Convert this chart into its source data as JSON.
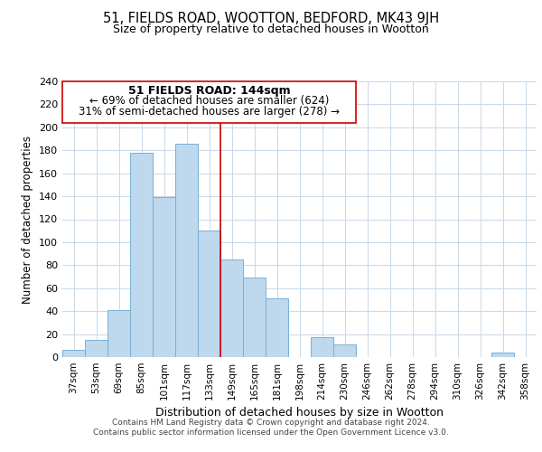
{
  "title": "51, FIELDS ROAD, WOOTTON, BEDFORD, MK43 9JH",
  "subtitle": "Size of property relative to detached houses in Wootton",
  "xlabel": "Distribution of detached houses by size in Wootton",
  "ylabel": "Number of detached properties",
  "bar_labels": [
    "37sqm",
    "53sqm",
    "69sqm",
    "85sqm",
    "101sqm",
    "117sqm",
    "133sqm",
    "149sqm",
    "165sqm",
    "181sqm",
    "198sqm",
    "214sqm",
    "230sqm",
    "246sqm",
    "262sqm",
    "278sqm",
    "294sqm",
    "310sqm",
    "326sqm",
    "342sqm",
    "358sqm"
  ],
  "bar_values": [
    6,
    15,
    41,
    178,
    139,
    186,
    110,
    85,
    69,
    51,
    0,
    17,
    11,
    0,
    0,
    0,
    0,
    0,
    0,
    4,
    0
  ],
  "bar_color": "#bed8ee",
  "bar_edge_color": "#7ab0d4",
  "ylim": [
    0,
    240
  ],
  "yticks": [
    0,
    20,
    40,
    60,
    80,
    100,
    120,
    140,
    160,
    180,
    200,
    220,
    240
  ],
  "property_line_x": 7,
  "property_line_color": "#cc0000",
  "annotation_title": "51 FIELDS ROAD: 144sqm",
  "annotation_line1": "← 69% of detached houses are smaller (624)",
  "annotation_line2": "31% of semi-detached houses are larger (278) →",
  "annotation_box_color": "#ffffff",
  "annotation_box_edge": "#cc0000",
  "footer_line1": "Contains HM Land Registry data © Crown copyright and database right 2024.",
  "footer_line2": "Contains public sector information licensed under the Open Government Licence v3.0.",
  "background_color": "#ffffff",
  "grid_color": "#c8d8e8"
}
